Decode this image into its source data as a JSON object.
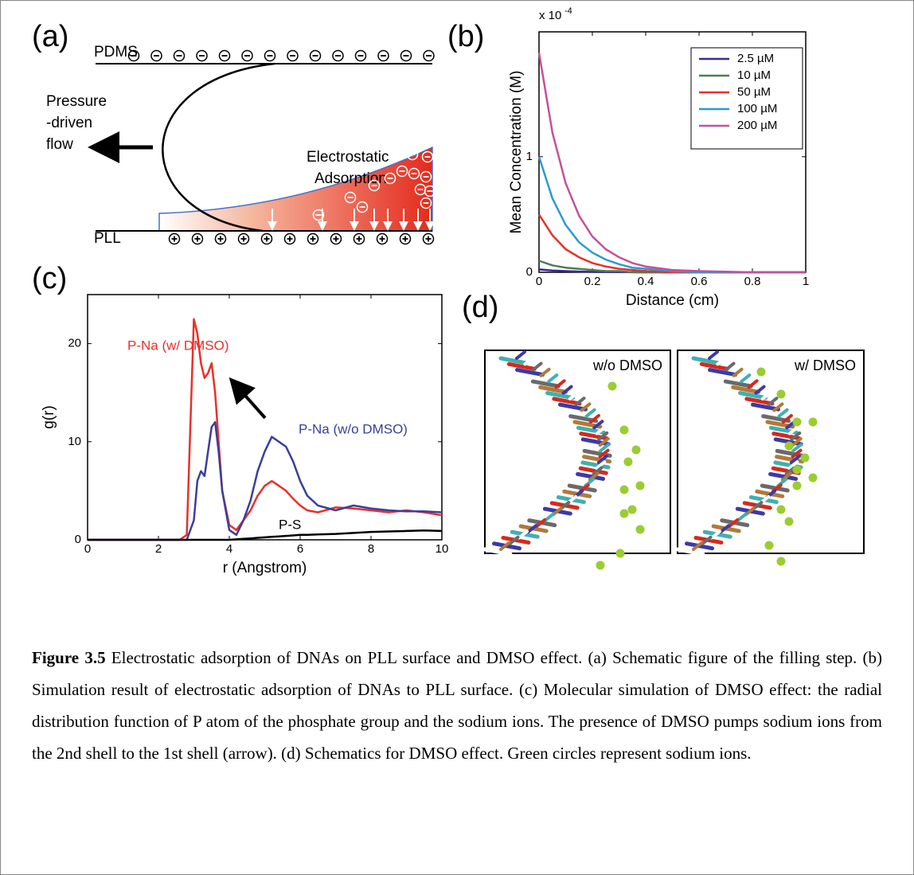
{
  "panel_labels": [
    "(a)",
    "(b)",
    "(c)",
    "(d)"
  ],
  "schematic": {
    "top_surface": "PDMS",
    "bottom_surface": "PLL",
    "flow_label": [
      "Pressure",
      "-driven",
      "flow"
    ],
    "adsorption_label": [
      "Electrostatic",
      "Adsorption"
    ]
  },
  "chart_data": [
    {
      "type": "line",
      "xlabel": "Distance (cm)",
      "ylabel": "Mean Concentration (M)",
      "y_multiplier": {
        "base": "x 10",
        "exponent": "-4"
      },
      "x": [
        0,
        0.05,
        0.1,
        0.15,
        0.2,
        0.25,
        0.3,
        0.35,
        0.4,
        0.5,
        0.6,
        0.8,
        1
      ],
      "series": [
        {
          "name": "2.5 µM",
          "color": "#3b2a8e",
          "values": [
            0.025,
            0.016,
            0.01,
            0.006,
            0.004,
            0.003,
            0.002,
            0.001,
            0,
            0,
            0,
            0,
            0
          ]
        },
        {
          "name": "10 µM",
          "color": "#4c7d55",
          "values": [
            0.1,
            0.06,
            0.04,
            0.03,
            0.02,
            0.01,
            0.01,
            0,
            0,
            0,
            0,
            0,
            0
          ]
        },
        {
          "name": "50 µM",
          "color": "#e8302a",
          "values": [
            0.5,
            0.32,
            0.2,
            0.13,
            0.08,
            0.05,
            0.03,
            0.02,
            0.01,
            0,
            0,
            0,
            0
          ]
        },
        {
          "name": "100 µM",
          "color": "#2a9bd0",
          "values": [
            1.0,
            0.64,
            0.41,
            0.26,
            0.17,
            0.11,
            0.07,
            0.04,
            0.03,
            0.01,
            0,
            0,
            0
          ]
        },
        {
          "name": "200 µM",
          "color": "#c4509a",
          "values": [
            1.9,
            1.21,
            0.77,
            0.49,
            0.31,
            0.2,
            0.13,
            0.08,
            0.05,
            0.02,
            0.01,
            0,
            0
          ]
        }
      ],
      "xlim": [
        0,
        1
      ],
      "ylim": [
        0,
        2.08
      ],
      "xticks": [
        0,
        0.2,
        0.4,
        0.6,
        0.8,
        1
      ],
      "yticks": [
        0,
        1
      ],
      "legend": "upper right"
    },
    {
      "type": "line",
      "xlabel": "r (Angstrom)",
      "ylabel": "g(r)",
      "x": [
        0,
        2.6,
        2.8,
        3.0,
        3.1,
        3.2,
        3.3,
        3.4,
        3.5,
        3.6,
        3.7,
        3.8,
        4.0,
        4.2,
        4.4,
        4.6,
        4.8,
        5.0,
        5.2,
        5.4,
        5.6,
        5.8,
        6.0,
        6.2,
        6.5,
        7.0,
        7.5,
        8.0,
        8.5,
        9.0,
        9.5,
        10.0
      ],
      "series": [
        {
          "name": "P-Na (w/ DMSO)",
          "color": "#e8302a",
          "values": [
            0,
            0,
            0.5,
            22.5,
            21,
            18,
            16.5,
            17,
            18,
            15,
            10,
            5,
            1.5,
            1,
            2,
            3,
            4.5,
            5.5,
            6,
            5.5,
            5,
            4.2,
            3.5,
            3,
            2.8,
            3.3,
            3.2,
            3,
            2.8,
            3,
            2.8,
            2.5
          ]
        },
        {
          "name": "P-Na (w/o DMSO)",
          "color": "#3b3f9a",
          "values": [
            0,
            0,
            0,
            2,
            6,
            7,
            6.5,
            9,
            11.5,
            12,
            9,
            5,
            1,
            0.5,
            2,
            4,
            7,
            9,
            10.5,
            10,
            9.5,
            8,
            6,
            4.5,
            3.5,
            3,
            3.5,
            3.2,
            3,
            2.9,
            2.9,
            2.8
          ]
        },
        {
          "name": "P-S",
          "color": "#000000",
          "values": [
            0,
            0,
            0,
            0,
            0,
            0,
            0,
            0,
            0,
            0,
            0,
            0,
            0,
            0.05,
            0.1,
            0.15,
            0.2,
            0.25,
            0.3,
            0.35,
            0.4,
            0.45,
            0.5,
            0.5,
            0.55,
            0.6,
            0.7,
            0.8,
            0.85,
            0.9,
            0.95,
            0.9
          ]
        }
      ],
      "xlim": [
        0,
        10
      ],
      "ylim": [
        0,
        25
      ],
      "xticks": [
        0,
        2,
        4,
        6,
        8,
        10
      ],
      "yticks": [
        0,
        10,
        20
      ]
    }
  ],
  "molecules": {
    "labels": [
      "w/o DMSO",
      "w/ DMSO"
    ]
  },
  "caption": {
    "label": "Figure 3.5",
    "text": "Electrostatic adsorption of DNAs on PLL surface and DMSO effect. (a) Schematic figure of the filling step. (b) Simulation result of electrostatic adsorption of DNAs to PLL surface. (c) Molecular simulation of DMSO effect: the radial distribution function of P atom of the phosphate group and the sodium ions. The presence of DMSO pumps sodium ions from the 2nd shell to the 1st shell (arrow). (d) Schematics for DMSO effect. Green circles represent sodium ions."
  }
}
